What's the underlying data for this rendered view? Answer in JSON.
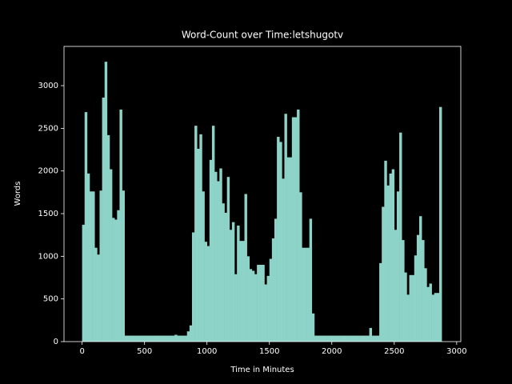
{
  "chart_data": {
    "type": "histogram",
    "title": "Word-Count over Time:letshugotv",
    "x_label": "Time in Minutes",
    "y_label": "Words",
    "color": "#8dd3c7",
    "bins": [
      0,
      20,
      40,
      60,
      80,
      100,
      120,
      140,
      160,
      180,
      200,
      220,
      240,
      260,
      280,
      300,
      320,
      340,
      360,
      380,
      400,
      420,
      440,
      460,
      480,
      500,
      520,
      540,
      560,
      580,
      600,
      620,
      640,
      660,
      680,
      700,
      720,
      740,
      760,
      780,
      800,
      820,
      840,
      860,
      880,
      900,
      920,
      940,
      960,
      980,
      1000,
      1020,
      1040,
      1060,
      1080,
      1100,
      1120,
      1140,
      1160,
      1180,
      1200,
      1220,
      1240,
      1260,
      1280,
      1300,
      1320,
      1340,
      1360,
      1380,
      1400,
      1420,
      1440,
      1460,
      1480,
      1500,
      1520,
      1540,
      1560,
      1580,
      1600,
      1620,
      1640,
      1660,
      1680,
      1700,
      1720,
      1740,
      1760,
      1780,
      1800,
      1820,
      1840,
      1860,
      1880,
      1900,
      1920,
      1940,
      1960,
      1980,
      2000,
      2020,
      2040,
      2060,
      2080,
      2100,
      2120,
      2140,
      2160,
      2180,
      2200,
      2220,
      2240,
      2260,
      2280,
      2300,
      2320,
      2340,
      2360,
      2380,
      2400,
      2420,
      2440,
      2460,
      2480,
      2500,
      2520,
      2540,
      2560,
      2580,
      2600,
      2620,
      2640,
      2660,
      2680,
      2700,
      2720,
      2740,
      2760,
      2780,
      2800,
      2820,
      2840,
      2860,
      2880
    ],
    "values": [
      1370,
      2690,
      1970,
      1760,
      1760,
      1100,
      1020,
      1770,
      2860,
      3280,
      2420,
      2020,
      1450,
      1430,
      1540,
      2720,
      1770,
      70,
      70,
      70,
      70,
      70,
      70,
      70,
      70,
      70,
      70,
      70,
      70,
      70,
      70,
      70,
      70,
      70,
      70,
      70,
      70,
      80,
      70,
      70,
      70,
      70,
      120,
      190,
      1280,
      2530,
      2260,
      2430,
      1760,
      1170,
      1120,
      2130,
      2530,
      1990,
      1880,
      2030,
      1620,
      1510,
      1930,
      1310,
      1400,
      790,
      1360,
      1180,
      1180,
      1730,
      1000,
      850,
      830,
      790,
      900,
      900,
      900,
      670,
      770,
      970,
      1210,
      1440,
      2400,
      2340,
      1910,
      2670,
      2160,
      2160,
      2630,
      2630,
      2720,
      1750,
      1100,
      1100,
      1100,
      1440,
      330,
      70,
      70,
      70,
      70,
      70,
      70,
      70,
      70,
      70,
      70,
      70,
      70,
      70,
      70,
      70,
      70,
      70,
      70,
      70,
      70,
      70,
      70,
      160,
      70,
      70,
      70,
      920,
      1580,
      2120,
      1830,
      1970,
      2020,
      1310,
      1760,
      2450,
      1190,
      810,
      550,
      780,
      780,
      1010,
      1250,
      1470,
      1190,
      860,
      640,
      680,
      550,
      570,
      570,
      2750
    ],
    "xlim": [
      -145,
      3033
    ],
    "ylim": [
      0,
      3460
    ],
    "xticks": [
      0,
      500,
      1000,
      1500,
      2000,
      2500,
      3000
    ],
    "yticks": [
      0,
      500,
      1000,
      1500,
      2000,
      2500,
      3000
    ]
  }
}
